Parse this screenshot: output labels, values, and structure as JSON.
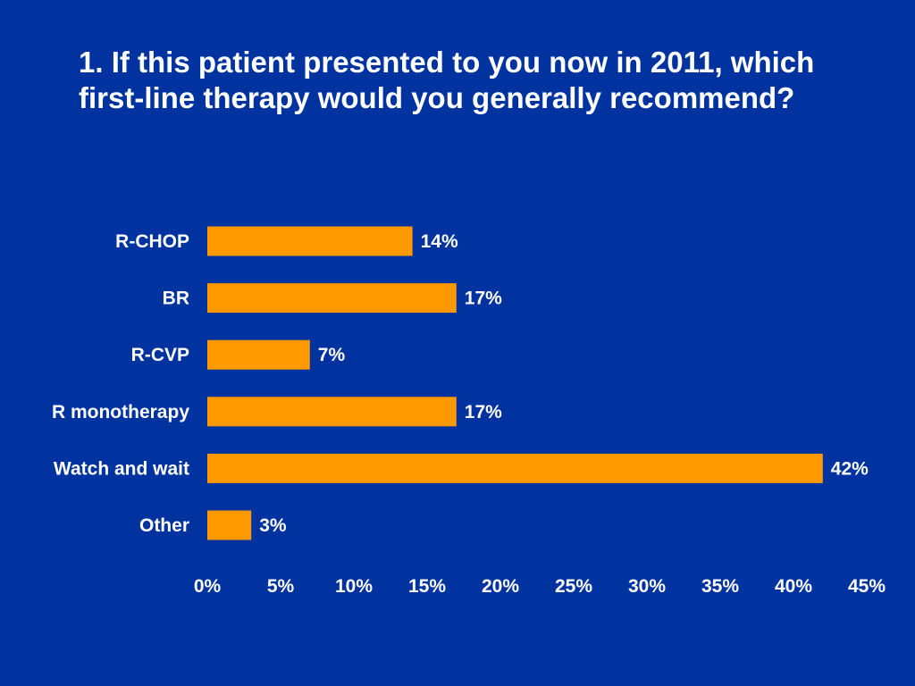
{
  "slide": {
    "title": "1. If this patient presented to you now in 2011, which first-line therapy would you generally recommend?"
  },
  "colors": {
    "background": "#0033A0",
    "bar": "#FF9900",
    "text": "#FFFFFF"
  },
  "chart_data": {
    "type": "bar",
    "orientation": "horizontal",
    "categories": [
      "R-CHOP",
      "BR",
      "R-CVP",
      "R monotherapy",
      "Watch and wait",
      "Other"
    ],
    "values": [
      14,
      17,
      7,
      17,
      42,
      3
    ],
    "data_labels": [
      "14%",
      "17%",
      "7%",
      "17%",
      "42%",
      "3%"
    ],
    "xlim": [
      0,
      45
    ],
    "x_ticks": [
      0,
      5,
      10,
      15,
      20,
      25,
      30,
      35,
      40,
      45
    ],
    "x_tick_labels": [
      "0%",
      "5%",
      "10%",
      "15%",
      "20%",
      "25%",
      "30%",
      "35%",
      "40%",
      "45%"
    ],
    "xlabel": "",
    "ylabel": "",
    "grid": false,
    "legend": "none"
  }
}
